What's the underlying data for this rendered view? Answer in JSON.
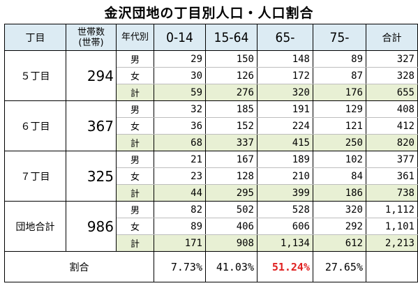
{
  "title": "金沢団地の丁目別人口・人口割合",
  "headers": {
    "chome": "丁目",
    "households_line1": "世帯数",
    "households_line2": "(世帯)",
    "age_group": "年代別",
    "col1": "0-14",
    "col2": "15-64",
    "col3": "65-",
    "col4": "75-",
    "total": "合計"
  },
  "sex_labels": {
    "male": "男",
    "female": "女",
    "total": "計"
  },
  "districts": [
    {
      "name": "５丁目",
      "households": "294",
      "male": [
        "29",
        "150",
        "148",
        "89",
        "327"
      ],
      "female": [
        "30",
        "126",
        "172",
        "87",
        "328"
      ],
      "total": [
        "59",
        "276",
        "320",
        "176",
        "655"
      ]
    },
    {
      "name": "６丁目",
      "households": "367",
      "male": [
        "32",
        "185",
        "191",
        "129",
        "408"
      ],
      "female": [
        "36",
        "152",
        "224",
        "121",
        "412"
      ],
      "total": [
        "68",
        "337",
        "415",
        "250",
        "820"
      ]
    },
    {
      "name": "７丁目",
      "households": "325",
      "male": [
        "21",
        "167",
        "189",
        "102",
        "377"
      ],
      "female": [
        "23",
        "128",
        "210",
        "84",
        "361"
      ],
      "total": [
        "44",
        "295",
        "399",
        "186",
        "738"
      ]
    },
    {
      "name": "団地合計",
      "households": "986",
      "male": [
        "82",
        "502",
        "528",
        "320",
        "1,112"
      ],
      "female": [
        "89",
        "406",
        "606",
        "292",
        "1,101"
      ],
      "total": [
        "171",
        "908",
        "1,134",
        "612",
        "2,213"
      ]
    }
  ],
  "ratio": {
    "label": "割合",
    "values": [
      "7.73%",
      "41.03%",
      "51.24%",
      "27.65%",
      ""
    ],
    "highlight_color": "#e02020"
  }
}
